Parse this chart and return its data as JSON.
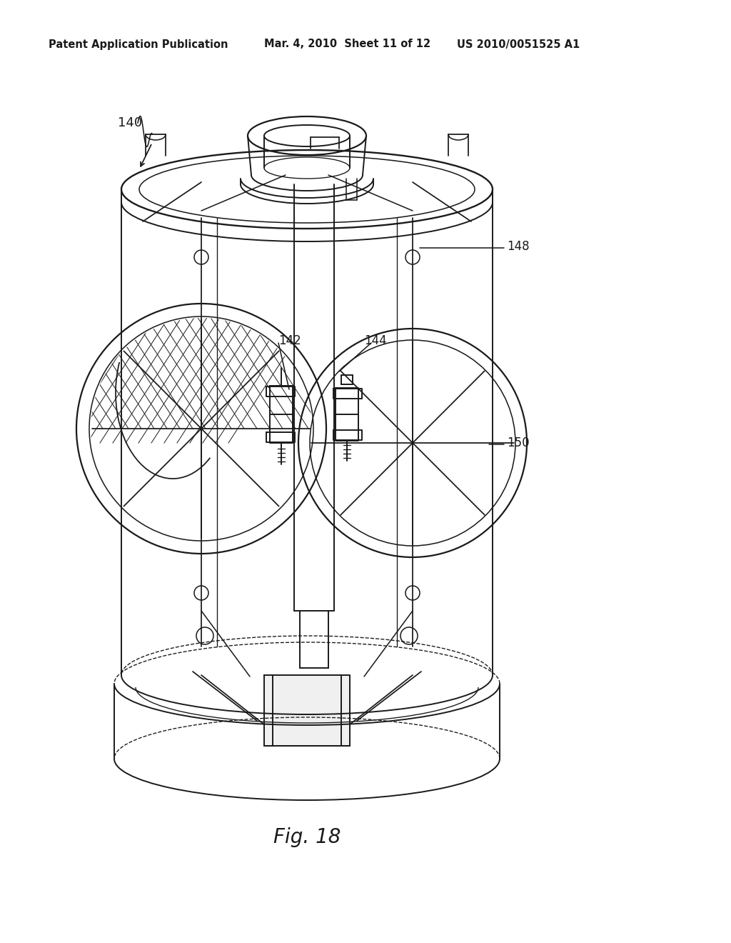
{
  "background_color": "#ffffff",
  "header_left": "Patent Application Publication",
  "header_mid": "Mar. 4, 2010  Sheet 11 of 12",
  "header_right": "US 2010/0051525 A1",
  "caption": "Fig. 18",
  "label_140": "140",
  "label_142": "142",
  "label_144": "144",
  "label_148": "148",
  "label_150": "150",
  "line_color": "#1a1a1a",
  "line_width": 1.4,
  "header_fontsize": 10.5,
  "caption_fontsize": 20,
  "label_fontsize": 12,
  "fig_width": 10.24,
  "fig_height": 13.2,
  "dpi": 100
}
